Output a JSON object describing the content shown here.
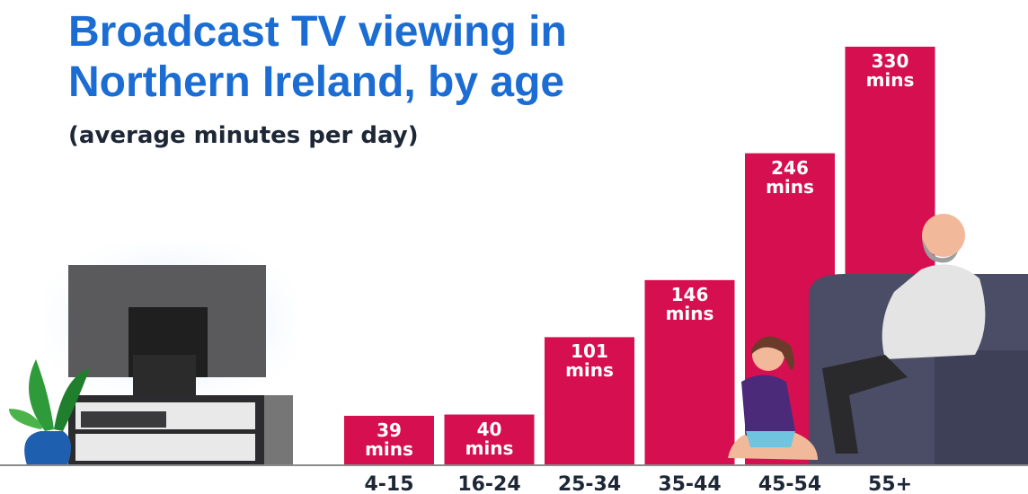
{
  "chart_data": {
    "type": "bar",
    "title": "Broadcast TV viewing in Northern Ireland, by age",
    "subtitle": "(average minutes per day)",
    "categories": [
      "4-15",
      "16-24",
      "25-34",
      "35-44",
      "45-54",
      "55+"
    ],
    "values": [
      39,
      40,
      101,
      146,
      246,
      330
    ],
    "value_labels": [
      "39 mins",
      "40 mins",
      "101 mins",
      "146 mins",
      "246 mins",
      "330 mins"
    ],
    "color": "#d60f50"
  }
}
